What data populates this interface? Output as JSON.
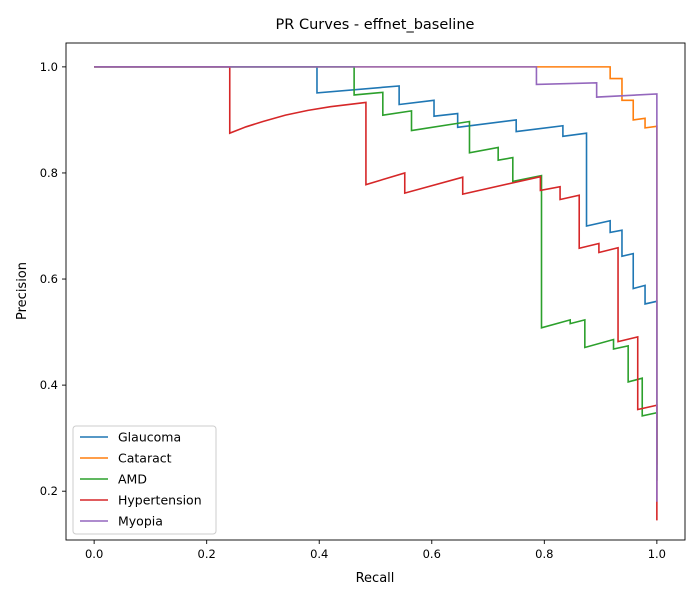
{
  "chart_data": {
    "type": "line",
    "title": "PR Curves - effnet_baseline",
    "xlabel": "Recall",
    "ylabel": "Precision",
    "xlim": [
      -0.05,
      1.05
    ],
    "ylim": [
      0.108,
      1.045
    ],
    "xticks": [
      0.0,
      0.2,
      0.4,
      0.6,
      0.8,
      1.0
    ],
    "yticks": [
      0.2,
      0.4,
      0.6,
      0.8,
      1.0
    ],
    "xtick_labels": [
      "0.0",
      "0.2",
      "0.4",
      "0.6",
      "0.8",
      "1.0"
    ],
    "ytick_labels": [
      "0.2",
      "0.4",
      "0.6",
      "0.8",
      "1.0"
    ],
    "grid": false,
    "legend_position": "lower-left",
    "series": [
      {
        "name": "Glaucoma",
        "color": "#1f77b4",
        "points": [
          [
            0,
            1.0
          ],
          [
            0.396,
            1.0
          ],
          [
            0.396,
            0.951
          ],
          [
            0.542,
            0.964
          ],
          [
            0.542,
            0.929
          ],
          [
            0.604,
            0.937
          ],
          [
            0.604,
            0.907
          ],
          [
            0.646,
            0.912
          ],
          [
            0.646,
            0.886
          ],
          [
            0.75,
            0.9
          ],
          [
            0.75,
            0.878
          ],
          [
            0.833,
            0.889
          ],
          [
            0.833,
            0.869
          ],
          [
            0.875,
            0.875
          ],
          [
            0.875,
            0.7
          ],
          [
            0.917,
            0.71
          ],
          [
            0.917,
            0.688
          ],
          [
            0.938,
            0.692
          ],
          [
            0.938,
            0.643
          ],
          [
            0.958,
            0.648
          ],
          [
            0.958,
            0.582
          ],
          [
            0.979,
            0.588
          ],
          [
            0.979,
            0.553
          ],
          [
            1.0,
            0.558
          ],
          [
            1.0,
            0.24
          ]
        ]
      },
      {
        "name": "Cataract",
        "color": "#ff7f0e",
        "points": [
          [
            0,
            1.0
          ],
          [
            0.917,
            1.0
          ],
          [
            0.917,
            0.978
          ],
          [
            0.938,
            0.978
          ],
          [
            0.938,
            0.937
          ],
          [
            0.958,
            0.937
          ],
          [
            0.958,
            0.9
          ],
          [
            0.979,
            0.903
          ],
          [
            0.979,
            0.885
          ],
          [
            1.0,
            0.888
          ],
          [
            1.0,
            0.25
          ]
        ]
      },
      {
        "name": "AMD",
        "color": "#2ca02c",
        "points": [
          [
            0,
            1.0
          ],
          [
            0.462,
            1.0
          ],
          [
            0.462,
            0.947
          ],
          [
            0.513,
            0.952
          ],
          [
            0.513,
            0.909
          ],
          [
            0.564,
            0.917
          ],
          [
            0.564,
            0.88
          ],
          [
            0.667,
            0.897
          ],
          [
            0.667,
            0.838
          ],
          [
            0.718,
            0.848
          ],
          [
            0.718,
            0.824
          ],
          [
            0.744,
            0.829
          ],
          [
            0.744,
            0.784
          ],
          [
            0.795,
            0.795
          ],
          [
            0.795,
            0.508
          ],
          [
            0.846,
            0.523
          ],
          [
            0.846,
            0.516
          ],
          [
            0.872,
            0.523
          ],
          [
            0.872,
            0.471
          ],
          [
            0.923,
            0.486
          ],
          [
            0.923,
            0.468
          ],
          [
            0.949,
            0.474
          ],
          [
            0.949,
            0.406
          ],
          [
            0.974,
            0.413
          ],
          [
            0.974,
            0.342
          ],
          [
            1.0,
            0.348
          ],
          [
            1.0,
            0.22
          ]
        ]
      },
      {
        "name": "Hypertension",
        "color": "#d62728",
        "points": [
          [
            0,
            1.0
          ],
          [
            0.241,
            1.0
          ],
          [
            0.241,
            0.875
          ],
          [
            0.27,
            0.887
          ],
          [
            0.3,
            0.897
          ],
          [
            0.34,
            0.909
          ],
          [
            0.38,
            0.918
          ],
          [
            0.42,
            0.925
          ],
          [
            0.483,
            0.933
          ],
          [
            0.483,
            0.778
          ],
          [
            0.552,
            0.8
          ],
          [
            0.552,
            0.762
          ],
          [
            0.655,
            0.792
          ],
          [
            0.655,
            0.76
          ],
          [
            0.793,
            0.793
          ],
          [
            0.793,
            0.767
          ],
          [
            0.828,
            0.774
          ],
          [
            0.828,
            0.75
          ],
          [
            0.862,
            0.758
          ],
          [
            0.862,
            0.658
          ],
          [
            0.897,
            0.667
          ],
          [
            0.897,
            0.65
          ],
          [
            0.931,
            0.659
          ],
          [
            0.931,
            0.482
          ],
          [
            0.966,
            0.491
          ],
          [
            0.966,
            0.354
          ],
          [
            1.0,
            0.362
          ],
          [
            1.0,
            0.145
          ]
        ]
      },
      {
        "name": "Myopia",
        "color": "#9467bd",
        "points": [
          [
            0,
            1.0
          ],
          [
            0.786,
            1.0
          ],
          [
            0.786,
            0.967
          ],
          [
            0.893,
            0.97
          ],
          [
            0.893,
            0.943
          ],
          [
            1.0,
            0.949
          ],
          [
            1.0,
            0.18
          ]
        ]
      }
    ]
  }
}
